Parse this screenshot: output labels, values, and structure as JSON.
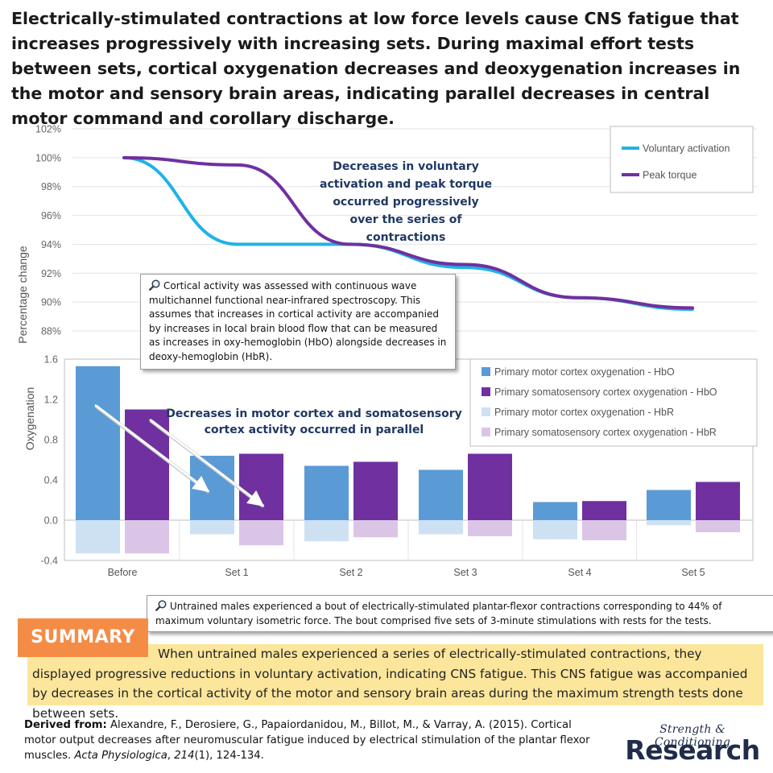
{
  "headline": "Electrically-stimulated contractions at low force levels cause CNS fatigue that increases progressively with increasing sets. During maximal effort tests between sets, cortical oxygenation decreases and deoxygenation increases in the motor and sensory brain areas, indicating parallel decreases in central motor command and corollary discharge.",
  "icons": {
    "note": "magnifier-icon"
  },
  "colors": {
    "voluntary_activation": "#1fb3e6",
    "peak_torque": "#7030a0",
    "motor_hbo": "#5b9bd5",
    "somato_hbo": "#7030a0",
    "motor_hbr": "#cde1f3",
    "somato_hbr": "#dbc5e6",
    "annotation_text": "#1f3864",
    "summary_label": "#f58c46",
    "summary_bg": "#fce69c"
  },
  "chart_data": [
    {
      "type": "line",
      "ylabel": "Percentage change",
      "ylim": [
        88,
        102
      ],
      "y_ticks": [
        "88%",
        "90%",
        "92%",
        "94%",
        "96%",
        "98%",
        "100%",
        "102%"
      ],
      "x": [
        "Before",
        "Set 1",
        "Set 2",
        "Set 3",
        "Set 4",
        "Set 5"
      ],
      "series": [
        {
          "name": "Voluntary activation",
          "values": [
            100,
            94.0,
            94.0,
            92.4,
            90.3,
            89.5
          ]
        },
        {
          "name": "Peak torque",
          "values": [
            100,
            99.5,
            94.0,
            92.6,
            90.3,
            89.6
          ]
        }
      ],
      "annotation": "Decreases in voluntary activation and peak torque occurred progressively over the series of contractions",
      "legend_position": "top-right",
      "grid": true
    },
    {
      "type": "bar",
      "ylabel": "Oxygenation",
      "ylim": [
        -0.4,
        1.6
      ],
      "y_ticks": [
        "-0.4",
        "0.0",
        "0.4",
        "0.8",
        "1.2",
        "1.6"
      ],
      "categories": [
        "Before",
        "Set 1",
        "Set 2",
        "Set 3",
        "Set 4",
        "Set 5"
      ],
      "series": [
        {
          "name": "Primary motor cortex oxygenation - HbO",
          "values": [
            1.53,
            0.64,
            0.54,
            0.5,
            0.18,
            0.3
          ]
        },
        {
          "name": "Primary somatosensory cortex oxygenation - HbO",
          "values": [
            1.1,
            0.66,
            0.58,
            0.66,
            0.19,
            0.38
          ]
        },
        {
          "name": "Primary motor cortex oxygenation - HbR",
          "values": [
            -0.33,
            -0.14,
            -0.21,
            -0.14,
            -0.19,
            -0.05
          ]
        },
        {
          "name": "Primary somatosensory cortex oxygenation - HbR",
          "values": [
            -0.33,
            -0.25,
            -0.17,
            -0.16,
            -0.2,
            -0.12
          ]
        }
      ],
      "annotation": "Decreases in motor cortex and somatosensory cortex activity occurred in parallel",
      "legend_position": "top-right",
      "grid": false
    }
  ],
  "notes": {
    "fnirs": "Cortical activity was assessed with continuous wave multichannel functional near-infrared spectroscopy. This assumes that increases in cortical activity are accompanied by increases in local brain blood flow that can be measured as increases in oxy-hemoglobin (HbO) alongside decreases in deoxy-hemoglobin (HbR).",
    "protocol": "Untrained males experienced a bout of electrically-stimulated plantar-flexor contractions corresponding to 44% of maximum voluntary isometric force. The bout comprised five sets of 3-minute stimulations with rests for the tests."
  },
  "summary": {
    "label": "SUMMARY",
    "text": "When untrained males experienced a series of electrically-stimulated contractions, they displayed progressive reductions in voluntary activation, indicating CNS fatigue. This CNS fatigue was accompanied by decreases in the cortical activity of the motor and sensory brain areas during the maximum strength tests done between sets."
  },
  "citation": {
    "label": "Derived from:",
    "text_before": " Alexandre, F., Derosiere, G., Papaiordanidou, M., Billot, M., & Varray, A. (2015). Cortical motor output decreases after neuromuscular fatigue induced by electrical stimulation of the plantar flexor muscles. ",
    "journal": "Acta Physiologica",
    "volume": "214",
    "issue_pages": "(1), 124-134."
  },
  "logo": {
    "line1": "Strength & Conditioning",
    "line2": "Research"
  }
}
